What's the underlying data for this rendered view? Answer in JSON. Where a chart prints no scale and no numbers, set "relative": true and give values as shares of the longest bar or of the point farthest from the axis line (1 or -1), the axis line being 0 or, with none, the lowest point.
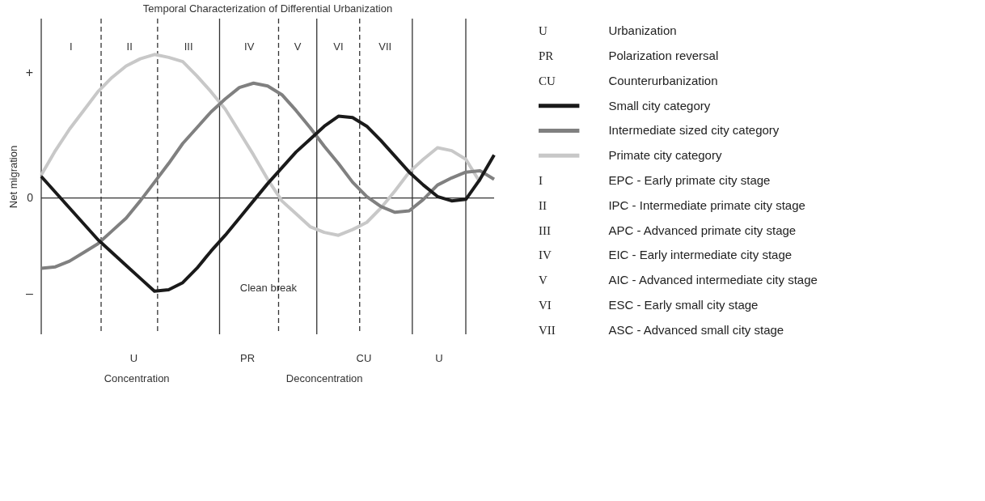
{
  "chart_data": {
    "type": "line",
    "title": "Temporal Characterization of Differential Urbanization",
    "ylabel": "Net migration",
    "relative": true,
    "line_style": "solid",
    "legend": "right",
    "tick_labels": false,
    "categories": [
      null,
      null,
      null,
      null,
      null,
      null,
      null,
      null,
      null,
      null,
      null,
      null,
      null,
      null,
      null,
      null,
      null,
      null,
      null,
      null,
      null,
      null,
      null,
      null,
      null,
      null,
      null,
      null,
      null,
      null,
      null,
      null,
      null
    ],
    "series": [
      {
        "name": "Small city category",
        "color": "#1a1a1a",
        "values": [
          0.15,
          0.04,
          -0.07,
          -0.18,
          -0.29,
          -0.38,
          -0.47,
          -0.56,
          -0.65,
          -0.64,
          -0.59,
          -0.49,
          -0.37,
          -0.26,
          -0.14,
          -0.02,
          0.1,
          0.21,
          0.32,
          0.41,
          0.5,
          0.57,
          0.56,
          0.5,
          0.4,
          0.29,
          0.18,
          0.09,
          0.01,
          -0.02,
          -0.01,
          0.13,
          0.3
        ]
      },
      {
        "name": "Intermediate sized city category",
        "color": "#808080",
        "values": [
          -0.49,
          -0.48,
          -0.44,
          -0.38,
          -0.32,
          -0.23,
          -0.14,
          -0.02,
          0.11,
          0.24,
          0.38,
          0.49,
          0.6,
          0.69,
          0.77,
          0.8,
          0.78,
          0.72,
          0.61,
          0.49,
          0.36,
          0.24,
          0.11,
          0.01,
          -0.06,
          -0.1,
          -0.09,
          -0.01,
          0.09,
          0.14,
          0.18,
          0.19,
          0.13
        ]
      },
      {
        "name": "Primate city category",
        "color": "#c8c8c8",
        "values": [
          0.16,
          0.33,
          0.48,
          0.61,
          0.74,
          0.84,
          0.92,
          0.97,
          1.0,
          0.98,
          0.95,
          0.85,
          0.74,
          0.62,
          0.46,
          0.3,
          0.13,
          -0.02,
          -0.11,
          -0.2,
          -0.24,
          -0.26,
          -0.22,
          -0.17,
          -0.07,
          0.05,
          0.18,
          0.27,
          0.35,
          0.33,
          0.27,
          0.11,
          null
        ]
      }
    ],
    "ref_lines": [
      {
        "axis": "y",
        "value": 0,
        "label": "0",
        "color": "#333333",
        "line_style": "solid"
      }
    ],
    "annotations": [
      "+",
      "–",
      "I",
      "II",
      "III",
      "IV",
      "V",
      "VI",
      "VII",
      "Clean break",
      "U",
      "PR",
      "CU",
      "U",
      "Concentration",
      "Deconcentration",
      "U",
      "Urbanization",
      "PR",
      "Polarization reversal",
      "CU",
      "Counterurbanization",
      "I",
      "EPC - Early primate city stage",
      "II",
      "IPC - Intermediate primate city stage",
      "III",
      "APC - Advanced primate city stage",
      "IV",
      "EIC - Early intermediate city stage",
      "V",
      "AIC - Advanced intermediate city stage",
      "VI",
      "ESC - Early small city stage",
      "VII",
      "ASC - Advanced small city stage"
    ]
  }
}
